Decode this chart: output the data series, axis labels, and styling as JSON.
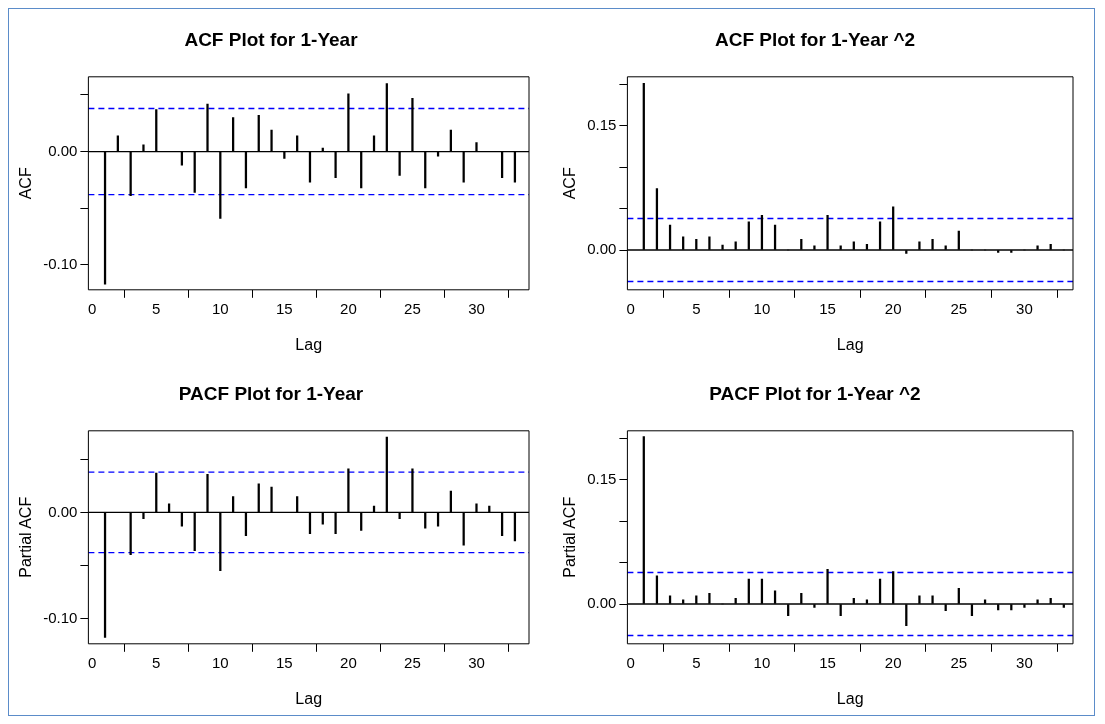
{
  "chart_data": [
    {
      "type": "bar",
      "title": "ACF Plot for 1-Year",
      "xlabel": "Lag",
      "ylabel": "ACF",
      "x": [
        1,
        2,
        3,
        4,
        5,
        6,
        7,
        8,
        9,
        10,
        11,
        12,
        13,
        14,
        15,
        16,
        17,
        18,
        19,
        20,
        21,
        22,
        23,
        24,
        25,
        26,
        27,
        28,
        29,
        30,
        31,
        32,
        33
      ],
      "series": [
        {
          "color": "#000000",
          "values": [
            -0.117,
            0.014,
            -0.039,
            0.006,
            0.037,
            0,
            -0.012,
            -0.036,
            0.042,
            -0.059,
            0.03,
            -0.032,
            0.032,
            0.019,
            -0.006,
            0.014,
            -0.027,
            0.003,
            -0.023,
            0.051,
            -0.032,
            0.014,
            0.06,
            -0.021,
            0.047,
            -0.032,
            -0.004,
            0.019,
            -0.027,
            0.008,
            0,
            -0.023,
            -0.027
          ]
        }
      ],
      "xlim": [
        -0.3,
        34.1
      ],
      "xticks": [
        0,
        5,
        10,
        15,
        20,
        25,
        30
      ],
      "ylim": [
        -0.122,
        0.066
      ],
      "yticks": [
        {
          "value": -0.1,
          "label": "-0.10"
        },
        {
          "value": -0.05,
          "label": null
        },
        {
          "value": 0,
          "label": "0.00"
        },
        {
          "value": 0.05,
          "label": null
        }
      ],
      "ref_lines": [
        {
          "axis": "y",
          "value": 0,
          "color": "#000000",
          "line_style": "solid"
        },
        {
          "axis": "y",
          "value": 0.038,
          "color": "#0000ff",
          "line_style": "dashed"
        },
        {
          "axis": "y",
          "value": -0.038,
          "color": "#0000ff",
          "line_style": "dashed"
        }
      ],
      "grid": false,
      "legend": false
    },
    {
      "type": "bar",
      "title": "ACF Plot for 1-Year ^2",
      "xlabel": "Lag",
      "ylabel": "ACF",
      "x": [
        1,
        2,
        3,
        4,
        5,
        6,
        7,
        8,
        9,
        10,
        11,
        12,
        13,
        14,
        15,
        16,
        17,
        18,
        19,
        20,
        21,
        22,
        23,
        24,
        25,
        26,
        27,
        28,
        29,
        30,
        31,
        32,
        33
      ],
      "series": [
        {
          "color": "#000000",
          "values": [
            0.201,
            0.074,
            0.03,
            0.016,
            0.013,
            0.016,
            0.006,
            0.01,
            0.034,
            0.042,
            0.03,
            0,
            0.013,
            0.005,
            0.042,
            0.005,
            0.01,
            0.007,
            0.034,
            0.052,
            -0.004,
            0.01,
            0.013,
            0.005,
            0.023,
            0,
            0,
            -0.003,
            -0.003,
            0,
            0.005,
            0.007,
            0
          ]
        }
      ],
      "xlim": [
        -0.25,
        33.7
      ],
      "xticks": [
        0,
        5,
        10,
        15,
        20,
        25,
        30
      ],
      "ylim": [
        -0.048,
        0.209
      ],
      "yticks": [
        {
          "value": 0,
          "label": "0.00"
        },
        {
          "value": 0.05,
          "label": null
        },
        {
          "value": 0.1,
          "label": null
        },
        {
          "value": 0.15,
          "label": "0.15"
        },
        {
          "value": 0.2,
          "label": null
        }
      ],
      "ref_lines": [
        {
          "axis": "y",
          "value": 0,
          "color": "#000000",
          "line_style": "solid"
        },
        {
          "axis": "y",
          "value": 0.038,
          "color": "#0000ff",
          "line_style": "dashed"
        },
        {
          "axis": "y",
          "value": -0.038,
          "color": "#0000ff",
          "line_style": "dashed"
        }
      ],
      "grid": false,
      "legend": false
    },
    {
      "type": "bar",
      "title": "PACF Plot for 1-Year",
      "xlabel": "Lag",
      "ylabel": "Partial ACF",
      "x": [
        1,
        2,
        3,
        4,
        5,
        6,
        7,
        8,
        9,
        10,
        11,
        12,
        13,
        14,
        15,
        16,
        17,
        18,
        19,
        20,
        21,
        22,
        23,
        24,
        25,
        26,
        27,
        28,
        29,
        30,
        31,
        32,
        33
      ],
      "series": [
        {
          "color": "#000000",
          "values": [
            -0.118,
            0,
            -0.04,
            -0.006,
            0.037,
            0.008,
            -0.013,
            -0.036,
            0.036,
            -0.055,
            0.015,
            -0.022,
            0.027,
            0.024,
            0,
            0.015,
            -0.02,
            -0.011,
            -0.02,
            0.041,
            -0.017,
            0.006,
            0.071,
            -0.006,
            0.041,
            -0.015,
            -0.013,
            0.02,
            -0.031,
            0.008,
            0.006,
            -0.022,
            -0.027
          ]
        }
      ],
      "xlim": [
        -0.3,
        34.1
      ],
      "xticks": [
        0,
        5,
        10,
        15,
        20,
        25,
        30
      ],
      "ylim": [
        -0.124,
        0.077
      ],
      "yticks": [
        {
          "value": -0.1,
          "label": "-0.10"
        },
        {
          "value": -0.05,
          "label": null
        },
        {
          "value": 0,
          "label": "0.00"
        },
        {
          "value": 0.05,
          "label": null
        }
      ],
      "ref_lines": [
        {
          "axis": "y",
          "value": 0,
          "color": "#000000",
          "line_style": "solid"
        },
        {
          "axis": "y",
          "value": 0.038,
          "color": "#0000ff",
          "line_style": "dashed"
        },
        {
          "axis": "y",
          "value": -0.038,
          "color": "#0000ff",
          "line_style": "dashed"
        }
      ],
      "grid": false,
      "legend": false
    },
    {
      "type": "bar",
      "title": "PACF Plot for 1-Year ^2",
      "xlabel": "Lag",
      "ylabel": "Partial ACF",
      "x": [
        1,
        2,
        3,
        4,
        5,
        6,
        7,
        8,
        9,
        10,
        11,
        12,
        13,
        14,
        15,
        16,
        17,
        18,
        19,
        20,
        21,
        22,
        23,
        24,
        25,
        26,
        27,
        28,
        29,
        30,
        31,
        32,
        33
      ],
      "series": [
        {
          "color": "#000000",
          "values": [
            0.202,
            0.034,
            0.01,
            0.005,
            0.01,
            0.013,
            0,
            0.007,
            0.03,
            0.03,
            0.016,
            -0.014,
            0.013,
            -0.004,
            0.042,
            -0.014,
            0.007,
            0.005,
            0.03,
            0.039,
            -0.026,
            0.01,
            0.01,
            -0.008,
            0.019,
            -0.014,
            0.005,
            -0.007,
            -0.007,
            -0.004,
            0.005,
            0.007,
            -0.004
          ]
        }
      ],
      "xlim": [
        -0.25,
        33.7
      ],
      "xticks": [
        0,
        5,
        10,
        15,
        20,
        25,
        30
      ],
      "ylim": [
        -0.048,
        0.209
      ],
      "yticks": [
        {
          "value": 0,
          "label": "0.00"
        },
        {
          "value": 0.05,
          "label": null
        },
        {
          "value": 0.1,
          "label": null
        },
        {
          "value": 0.15,
          "label": "0.15"
        },
        {
          "value": 0.2,
          "label": null
        }
      ],
      "ref_lines": [
        {
          "axis": "y",
          "value": 0,
          "color": "#000000",
          "line_style": "solid"
        },
        {
          "axis": "y",
          "value": 0.038,
          "color": "#0000ff",
          "line_style": "dashed"
        },
        {
          "axis": "y",
          "value": -0.038,
          "color": "#0000ff",
          "line_style": "dashed"
        }
      ],
      "grid": false,
      "legend": false
    }
  ]
}
